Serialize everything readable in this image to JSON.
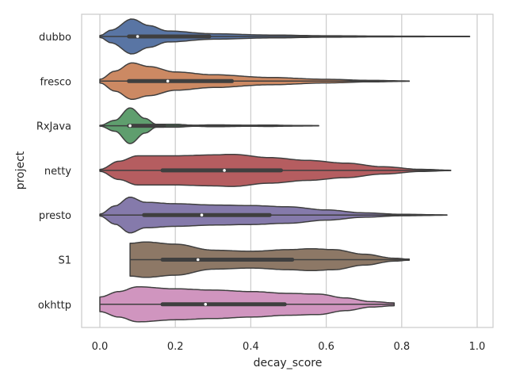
{
  "chart_data": {
    "type": "violin",
    "orientation": "horizontal",
    "xlabel": "decay_score",
    "ylabel": "project",
    "xlim": [
      -0.05,
      1.03
    ],
    "xticks": [
      0.0,
      0.2,
      0.4,
      0.6,
      0.8,
      1.0
    ],
    "xtick_labels": [
      "0.0",
      "0.2",
      "0.4",
      "0.6",
      "0.8",
      "1.0"
    ],
    "grid": "vertical",
    "categories": [
      "dubbo",
      "fresco",
      "RxJava",
      "netty",
      "presto",
      "S1",
      "okhttp"
    ],
    "series": [
      {
        "name": "dubbo",
        "color": "#5975a4",
        "min": 0.0,
        "q1": 0.077,
        "median": 0.1,
        "q3": 0.29,
        "max": 0.98,
        "density": [
          [
            0,
            0.05
          ],
          [
            0.03,
            0.35
          ],
          [
            0.085,
            0.96
          ],
          [
            0.13,
            0.6
          ],
          [
            0.18,
            0.3
          ],
          [
            0.3,
            0.15
          ],
          [
            0.45,
            0.08
          ],
          [
            0.6,
            0.04
          ],
          [
            0.75,
            0.02
          ],
          [
            0.98,
            0.01
          ]
        ]
      },
      {
        "name": "fresco",
        "color": "#cc8963",
        "min": 0.0,
        "q1": 0.077,
        "median": 0.18,
        "q3": 0.35,
        "max": 0.82,
        "density": [
          [
            0,
            0.1
          ],
          [
            0.04,
            0.55
          ],
          [
            0.085,
            1.0
          ],
          [
            0.13,
            0.8
          ],
          [
            0.2,
            0.5
          ],
          [
            0.3,
            0.35
          ],
          [
            0.45,
            0.2
          ],
          [
            0.6,
            0.1
          ],
          [
            0.72,
            0.04
          ],
          [
            0.82,
            0.01
          ]
        ]
      },
      {
        "name": "RxJava",
        "color": "#5f9e6e",
        "min": 0.0,
        "q1": 0.077,
        "median": 0.08,
        "q3": 0.17,
        "max": 0.58,
        "density": [
          [
            0,
            0.02
          ],
          [
            0.04,
            0.3
          ],
          [
            0.08,
            0.98
          ],
          [
            0.12,
            0.4
          ],
          [
            0.15,
            0.08
          ],
          [
            0.2,
            0.08
          ],
          [
            0.25,
            0.03
          ],
          [
            0.3,
            0.05
          ],
          [
            0.4,
            0.03
          ],
          [
            0.45,
            0.04
          ],
          [
            0.5,
            0.02
          ],
          [
            0.58,
            0.01
          ]
        ]
      },
      {
        "name": "netty",
        "color": "#b55d60",
        "min": 0.0,
        "q1": 0.166,
        "median": 0.33,
        "q3": 0.48,
        "max": 0.93,
        "density": [
          [
            0,
            0.05
          ],
          [
            0.05,
            0.5
          ],
          [
            0.1,
            0.8
          ],
          [
            0.2,
            0.8
          ],
          [
            0.3,
            0.85
          ],
          [
            0.35,
            0.88
          ],
          [
            0.45,
            0.7
          ],
          [
            0.55,
            0.55
          ],
          [
            0.65,
            0.4
          ],
          [
            0.75,
            0.2
          ],
          [
            0.85,
            0.06
          ],
          [
            0.93,
            0.01
          ]
        ]
      },
      {
        "name": "presto",
        "color": "#857aab",
        "min": 0.0,
        "q1": 0.117,
        "median": 0.27,
        "q3": 0.45,
        "max": 0.92,
        "density": [
          [
            0,
            0.05
          ],
          [
            0.04,
            0.5
          ],
          [
            0.08,
            0.98
          ],
          [
            0.12,
            0.7
          ],
          [
            0.2,
            0.62
          ],
          [
            0.3,
            0.55
          ],
          [
            0.4,
            0.52
          ],
          [
            0.5,
            0.45
          ],
          [
            0.6,
            0.28
          ],
          [
            0.7,
            0.12
          ],
          [
            0.8,
            0.04
          ],
          [
            0.92,
            0.01
          ]
        ]
      },
      {
        "name": "S1",
        "color": "#8d7866",
        "min": 0.08,
        "q1": 0.166,
        "median": 0.26,
        "q3": 0.51,
        "max": 0.82,
        "density": [
          [
            0.08,
            0.9
          ],
          [
            0.12,
            0.97
          ],
          [
            0.2,
            0.85
          ],
          [
            0.3,
            0.52
          ],
          [
            0.4,
            0.46
          ],
          [
            0.5,
            0.55
          ],
          [
            0.56,
            0.6
          ],
          [
            0.62,
            0.55
          ],
          [
            0.7,
            0.3
          ],
          [
            0.78,
            0.08
          ],
          [
            0.82,
            0.03
          ]
        ]
      },
      {
        "name": "okhttp",
        "color": "#d095bf",
        "min": 0.0,
        "q1": 0.166,
        "median": 0.28,
        "q3": 0.49,
        "max": 0.78,
        "density": [
          [
            0,
            0.4
          ],
          [
            0.05,
            0.7
          ],
          [
            0.1,
            0.96
          ],
          [
            0.2,
            0.85
          ],
          [
            0.3,
            0.78
          ],
          [
            0.4,
            0.7
          ],
          [
            0.5,
            0.6
          ],
          [
            0.58,
            0.56
          ],
          [
            0.65,
            0.35
          ],
          [
            0.72,
            0.15
          ],
          [
            0.78,
            0.08
          ]
        ]
      }
    ]
  }
}
